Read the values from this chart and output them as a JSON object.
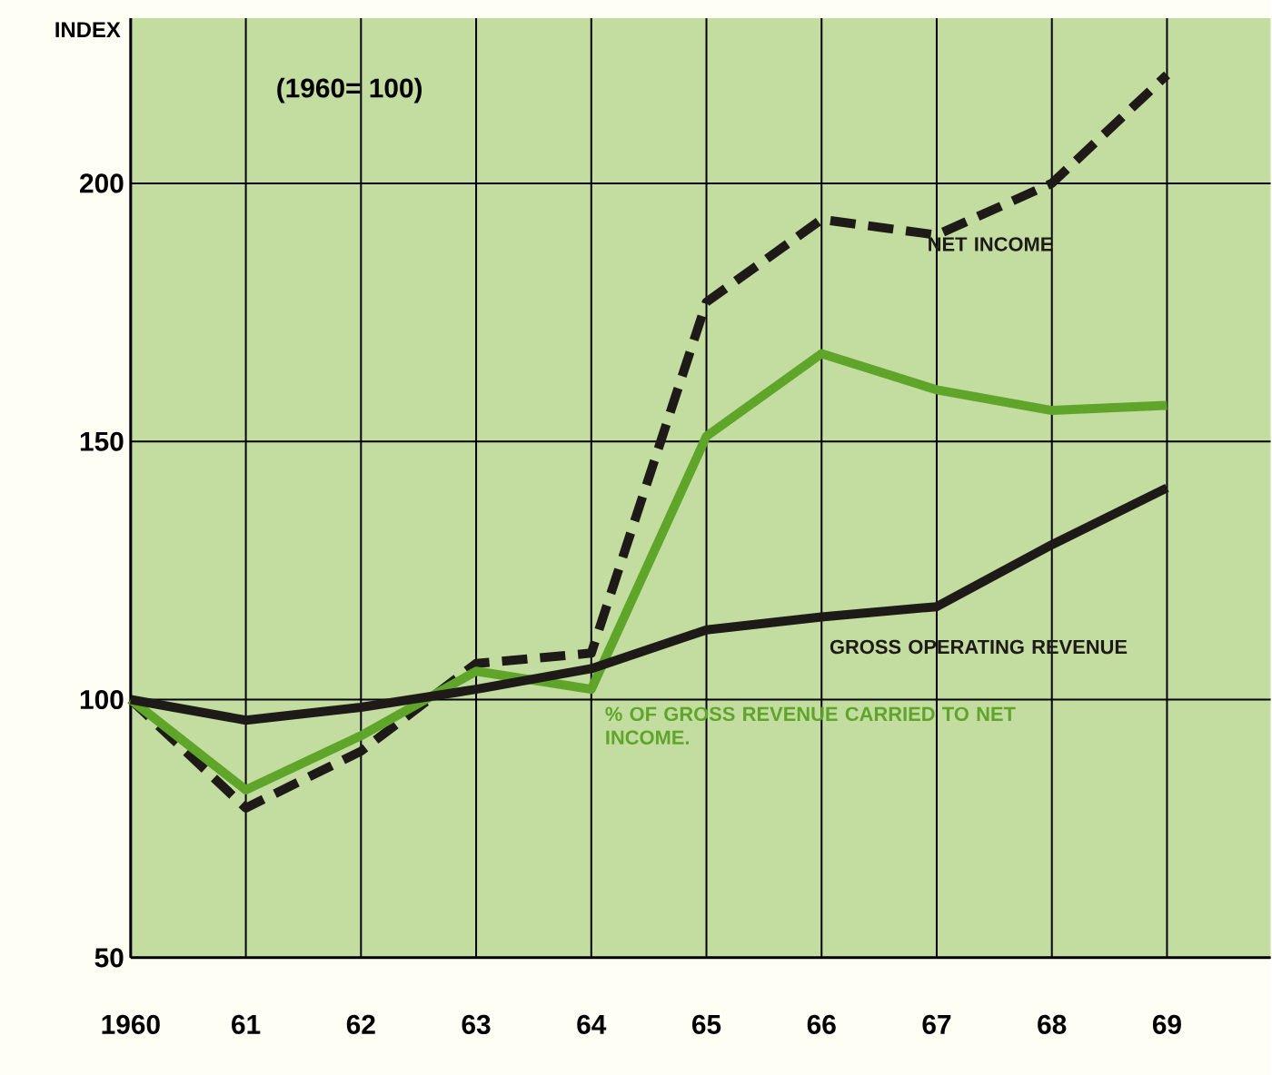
{
  "chart_data": {
    "type": "line",
    "ylabel": "INDEX",
    "annotations": [
      "(1960= 100)"
    ],
    "categories": [
      "1960",
      "61",
      "62",
      "63",
      "64",
      "65",
      "66",
      "67",
      "68",
      "69"
    ],
    "series": [
      {
        "name": "NET INCOME",
        "color": "#1e1a18",
        "line_style": "dashed",
        "values": [
          100,
          79,
          90,
          107,
          109,
          177,
          193,
          190,
          200,
          221
        ]
      },
      {
        "name": "% OF GROSS REVENUE CARRIED TO NET INCOME.",
        "color": "#5fa52a",
        "line_style": "solid",
        "values": [
          100,
          82.5,
          93,
          105.5,
          102,
          151,
          167,
          160,
          156,
          157
        ]
      },
      {
        "name": "GROSS OPERATING REVENUE",
        "color": "#1e1a18",
        "line_style": "solid",
        "values": [
          100,
          96,
          98.5,
          102,
          106,
          113.5,
          116,
          118,
          130,
          141
        ]
      }
    ],
    "ylim": [
      50,
      232
    ],
    "yticks": [
      50,
      100,
      150,
      200
    ],
    "grid": true,
    "legend": false,
    "marker": "none"
  }
}
